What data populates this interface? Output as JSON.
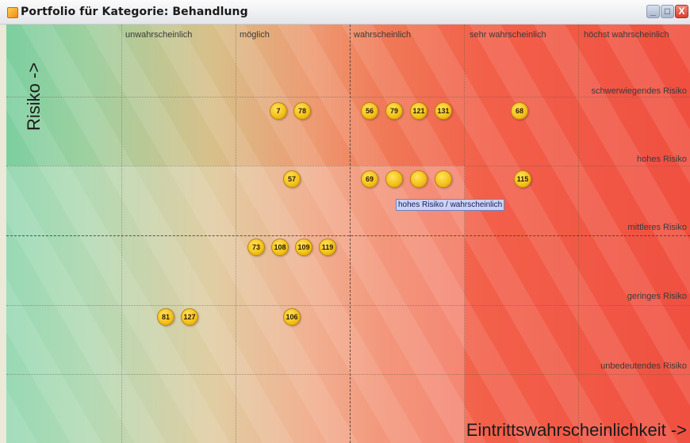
{
  "window": {
    "title": "Portfolio für Kategorie: Behandlung",
    "controls": {
      "minimize": "_",
      "maximize": "□",
      "close": "X"
    }
  },
  "axes": {
    "y_title": "Risiko ->",
    "x_title": "Eintrittswahrscheinlichkeit ->"
  },
  "columns": [
    "unwahrscheinlich",
    "möglich",
    "wahrscheinlich",
    "sehr wahrscheinlich",
    "höchst wahrscheinlich"
  ],
  "rows": [
    "schwerwiegendes Risiko",
    "hohes Risiko",
    "mittleres Risiko",
    "geringes Risiko",
    "unbedeutendes Risiko"
  ],
  "tooltip": "hohes Risiko / wahrscheinlich",
  "items": [
    {
      "id": "7",
      "col": "möglich",
      "row": "schwerwiegendes Risiko"
    },
    {
      "id": "78",
      "col": "möglich",
      "row": "schwerwiegendes Risiko"
    },
    {
      "id": "56",
      "col": "wahrscheinlich",
      "row": "schwerwiegendes Risiko"
    },
    {
      "id": "79",
      "col": "wahrscheinlich",
      "row": "schwerwiegendes Risiko"
    },
    {
      "id": "121",
      "col": "wahrscheinlich",
      "row": "schwerwiegendes Risiko"
    },
    {
      "id": "131",
      "col": "wahrscheinlich",
      "row": "schwerwiegendes Risiko"
    },
    {
      "id": "68",
      "col": "sehr wahrscheinlich",
      "row": "schwerwiegendes Risiko"
    },
    {
      "id": "57",
      "col": "möglich",
      "row": "hohes Risiko"
    },
    {
      "id": "69",
      "col": "wahrscheinlich",
      "row": "hohes Risiko"
    },
    {
      "id": "115",
      "col": "sehr wahrscheinlich",
      "row": "hohes Risiko"
    },
    {
      "id": "73",
      "col": "möglich",
      "row": "mittleres Risiko"
    },
    {
      "id": "108",
      "col": "möglich",
      "row": "mittleres Risiko"
    },
    {
      "id": "109",
      "col": "möglich",
      "row": "mittleres Risiko"
    },
    {
      "id": "119",
      "col": "möglich",
      "row": "mittleres Risiko"
    },
    {
      "id": "81",
      "col": "unwahrscheinlich",
      "row": "geringes Risiko"
    },
    {
      "id": "127",
      "col": "unwahrscheinlich",
      "row": "geringes Risiko"
    },
    {
      "id": "106",
      "col": "möglich",
      "row": "geringes Risiko"
    }
  ]
}
